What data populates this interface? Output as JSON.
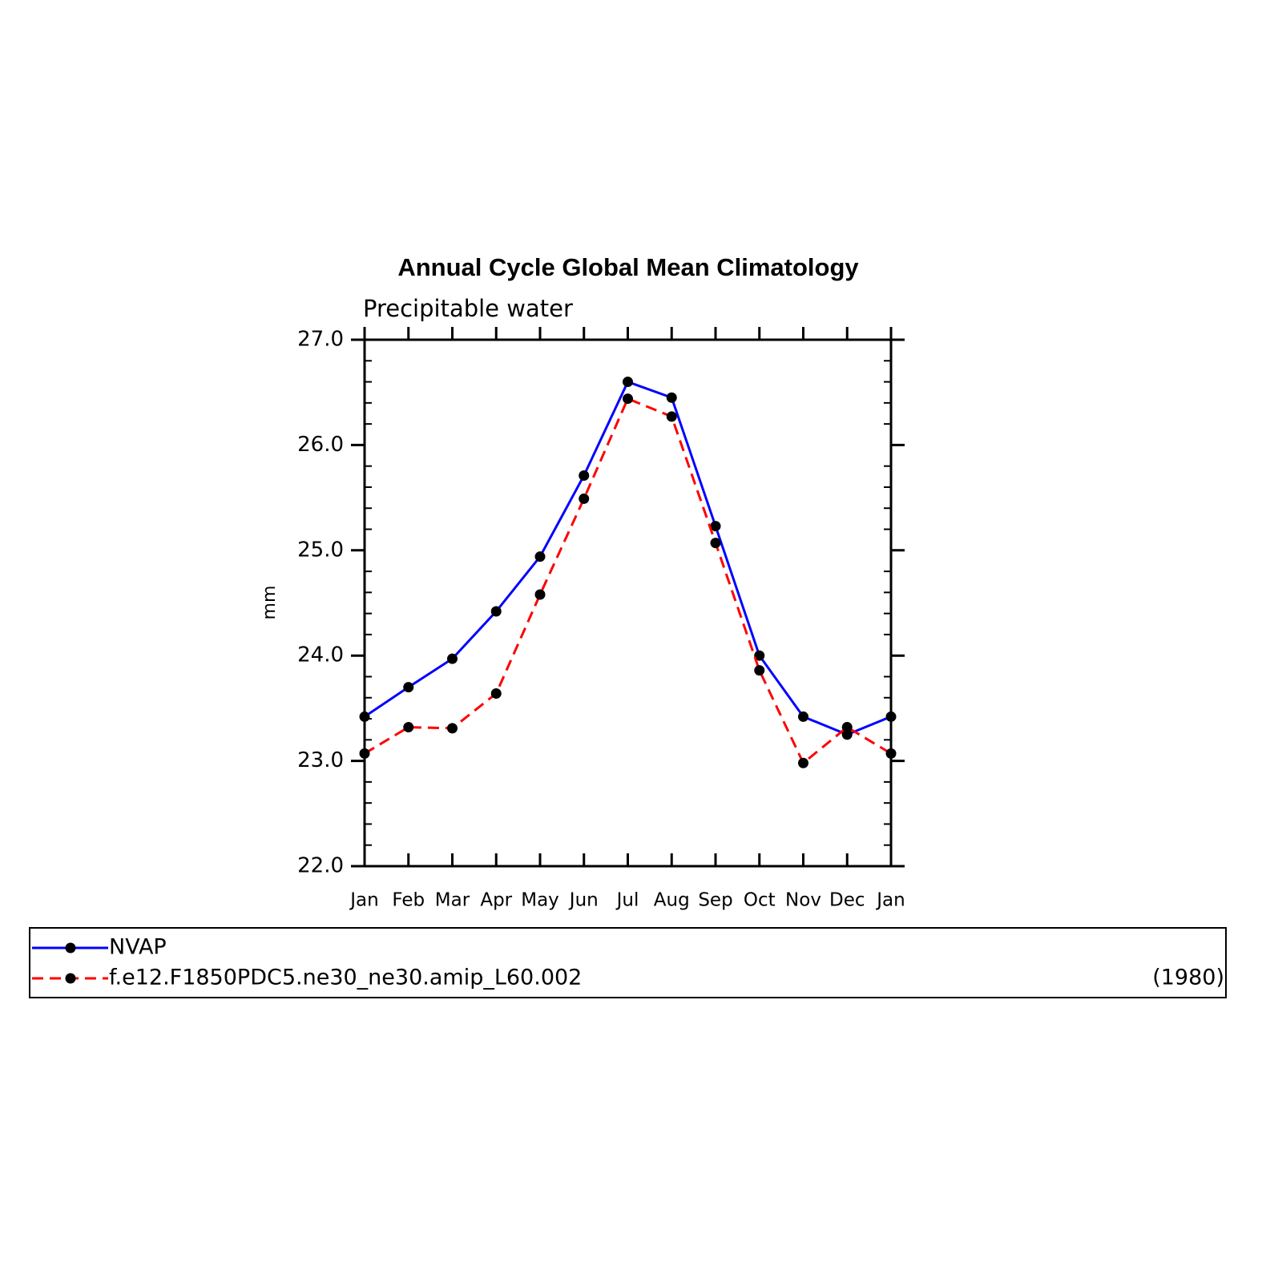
{
  "chart_data": {
    "type": "line",
    "title": "Annual Cycle Global Mean Climatology",
    "subtitle": "Precipitable water",
    "y_label": "mm",
    "categories": [
      "Jan",
      "Feb",
      "Mar",
      "Apr",
      "May",
      "Jun",
      "Jul",
      "Aug",
      "Sep",
      "Oct",
      "Nov",
      "Dec",
      "Jan"
    ],
    "series": [
      {
        "name": "NVAP",
        "color": "#0000ff",
        "linestyle": "solid",
        "values": [
          23.42,
          23.7,
          23.97,
          24.42,
          24.94,
          25.71,
          26.6,
          26.45,
          25.23,
          24.0,
          23.42,
          23.25,
          23.42
        ]
      },
      {
        "name": "f.e12.F1850PDC5.ne30_ne30.amip_L60.002",
        "color": "#ff0000",
        "linestyle": "dashed",
        "values": [
          23.07,
          23.32,
          23.31,
          23.64,
          24.58,
          25.49,
          26.44,
          26.27,
          25.07,
          23.86,
          22.98,
          23.32,
          23.07
        ]
      }
    ],
    "marker_color": "#000000",
    "legend_note": "(1980)",
    "ylim": [
      22,
      27
    ],
    "yticks": [
      {
        "value": 22,
        "label": "22.0"
      },
      {
        "value": 23,
        "label": "23.0"
      },
      {
        "value": 24,
        "label": "24.0"
      },
      {
        "value": 25,
        "label": "25.0"
      },
      {
        "value": 26,
        "label": "26.0"
      },
      {
        "value": 27,
        "label": "27.0"
      }
    ],
    "grid": false
  }
}
